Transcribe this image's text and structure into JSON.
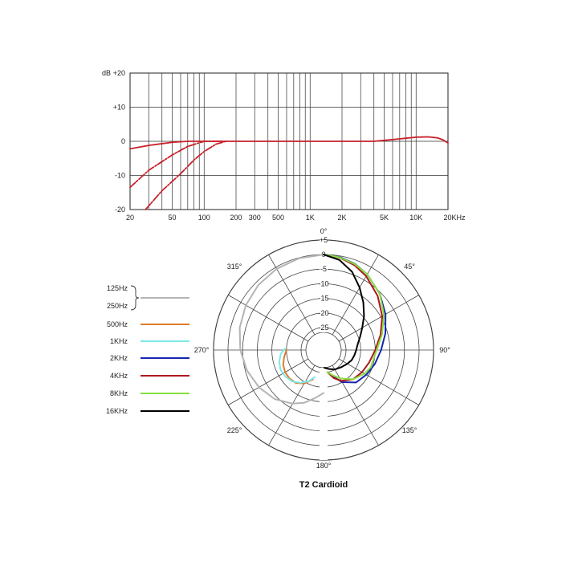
{
  "chart_data": [
    {
      "type": "line",
      "y_unit_label": "dB",
      "x_scale": "log",
      "xlim": [
        20,
        20000
      ],
      "ylim": [
        -20,
        20
      ],
      "x_ticks": [
        20,
        50,
        100,
        200,
        300,
        500,
        1000,
        2000,
        5000,
        10000,
        20000
      ],
      "x_tick_labels": [
        "20",
        "50",
        "100",
        "200",
        "300",
        "500",
        "1K",
        "2K",
        "5K",
        "10K",
        "20KHz"
      ],
      "y_ticks": [
        20,
        10,
        0,
        -10,
        -20
      ],
      "y_tick_labels": [
        "+20",
        "+10",
        "0",
        "-10",
        "-20"
      ],
      "grid": true,
      "color": "#c8202a",
      "series": [
        {
          "style": "solid",
          "x": [
            20,
            30,
            50,
            70,
            100,
            200,
            1000,
            4000,
            6000,
            8000,
            10000,
            13000,
            16000,
            18000,
            20000
          ],
          "y": [
            -2.2,
            -1.2,
            -0.3,
            0,
            0,
            0,
            0,
            0,
            0.5,
            0.9,
            1.2,
            1.3,
            1.0,
            0.4,
            -0.5
          ]
        },
        {
          "style": "dashed",
          "x": [
            20,
            30,
            50,
            70,
            100,
            150
          ],
          "y": [
            -13.5,
            -8.5,
            -4,
            -1.5,
            0,
            0
          ]
        },
        {
          "style": "dashed",
          "x": [
            28,
            40,
            60,
            80,
            100,
            130,
            160
          ],
          "y": [
            -20,
            -14.5,
            -9.5,
            -5.5,
            -3,
            -0.8,
            0
          ]
        }
      ]
    },
    {
      "type": "polar",
      "title": "T2 Cardioid",
      "angle_labels": [
        "0°",
        "45°",
        "90°",
        "135°",
        "180°",
        "225°",
        "270°",
        "315°"
      ],
      "radial_ticks": [
        5,
        0,
        -5,
        -10,
        -15,
        -20,
        -25
      ],
      "radial_tick_labels": [
        "+5",
        "0",
        "-5",
        "-10",
        "-15",
        "-20",
        "-25"
      ],
      "rlim": [
        -30,
        5
      ],
      "series": [
        {
          "name": "125Hz\n250Hz",
          "label_lines": [
            "125Hz",
            "250Hz"
          ],
          "color": "#b4b4b4",
          "side": "left",
          "angles": [
            0,
            15,
            30,
            45,
            60,
            75,
            90,
            105,
            120,
            135,
            150,
            160,
            170,
            180
          ],
          "db": [
            0,
            -0.2,
            -0.6,
            -1.2,
            -2.0,
            -3.0,
            -4.2,
            -5.6,
            -7.2,
            -9.0,
            -11.5,
            -13.5,
            -16,
            -18
          ]
        },
        {
          "name": "500Hz",
          "color": "#e07b2a",
          "side": "left",
          "angles": [
            90,
            100,
            110,
            120,
            130,
            140,
            150,
            160
          ],
          "db": [
            -20,
            -19,
            -18,
            -17.5,
            -17.5,
            -18,
            -19.5,
            -22
          ]
        },
        {
          "name": "1KHz",
          "color": "#7ee8e8",
          "side": "left",
          "angles": [
            88,
            95,
            105,
            115,
            125,
            135,
            145,
            155,
            162
          ],
          "db": [
            -19.5,
            -18,
            -17,
            -16.5,
            -16.8,
            -17.5,
            -19,
            -21,
            -23
          ]
        },
        {
          "name": "2KHz",
          "color": "#1626b0",
          "side": "right",
          "angles": [
            0,
            10,
            20,
            30,
            45,
            60,
            75,
            90,
            105,
            120,
            135,
            150,
            160
          ],
          "db": [
            0,
            -0.4,
            -1.3,
            -2.8,
            -5.5,
            -8.2,
            -10.8,
            -13,
            -14.5,
            -15.8,
            -17,
            -20,
            -23
          ]
        },
        {
          "name": "4KHz",
          "color": "#b0181e",
          "side": "right",
          "angles": [
            0,
            10,
            20,
            30,
            45,
            60,
            75,
            90,
            105,
            120,
            135,
            150,
            160,
            170
          ],
          "db": [
            0,
            -0.6,
            -1.8,
            -3.5,
            -6.5,
            -9.5,
            -12.5,
            -15,
            -16.5,
            -17.5,
            -18.5,
            -20.5,
            -22.5,
            -25
          ]
        },
        {
          "name": "8KHz",
          "color": "#86e040",
          "side": "right",
          "angles": [
            0,
            10,
            20,
            30,
            45,
            60,
            75,
            90,
            100,
            110,
            120,
            135,
            150,
            160,
            170
          ],
          "db": [
            0,
            -0.5,
            -1.4,
            -2.8,
            -5.5,
            -8.8,
            -12,
            -14.5,
            -15.3,
            -15.5,
            -16.5,
            -18.5,
            -21.5,
            -23.5,
            -25
          ]
        },
        {
          "name": "16KHz",
          "color": "#000000",
          "side": "right",
          "angles": [
            0,
            10,
            20,
            30,
            40,
            50,
            60,
            70,
            80,
            90,
            100,
            110,
            120,
            135,
            150,
            165,
            178
          ],
          "db": [
            0,
            -1.4,
            -4.2,
            -8,
            -11.5,
            -14.6,
            -17.4,
            -19.4,
            -20.8,
            -21.5,
            -22,
            -22.5,
            -23.3,
            -24.3,
            -25,
            -26,
            -27
          ]
        }
      ]
    }
  ]
}
